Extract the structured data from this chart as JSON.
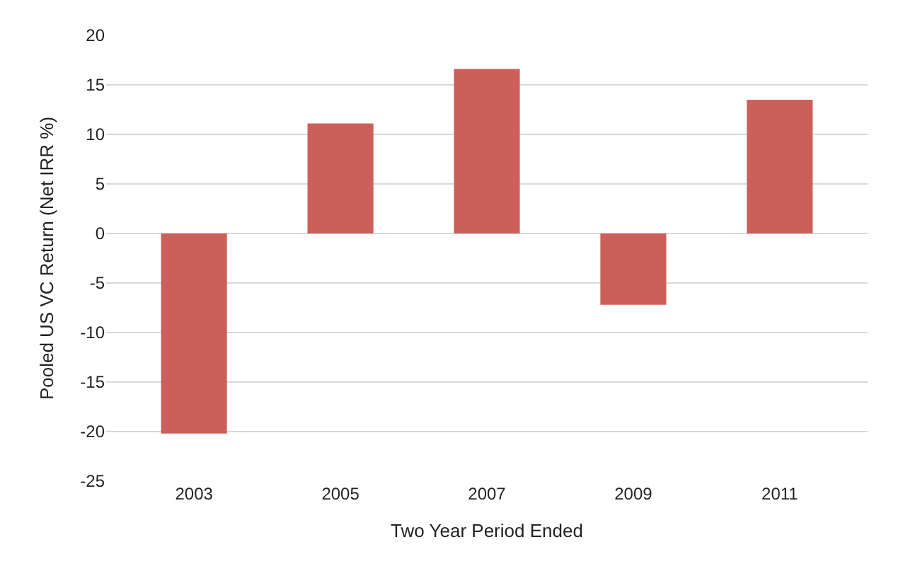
{
  "chart_data": {
    "type": "bar",
    "xlabel": "Two Year Period Ended",
    "ylabel": "Pooled US VC Return (Net IRR %)",
    "categories": [
      "2003",
      "2005",
      "2007",
      "2009",
      "2011"
    ],
    "values": [
      -20.2,
      11.1,
      16.6,
      -7.2,
      13.5
    ],
    "color": "#cd5f5a",
    "ylim": [
      -25,
      20
    ],
    "yticks": [
      -25,
      -20,
      -15,
      -10,
      -5,
      0,
      5,
      10,
      15,
      20
    ],
    "grid": "y"
  }
}
